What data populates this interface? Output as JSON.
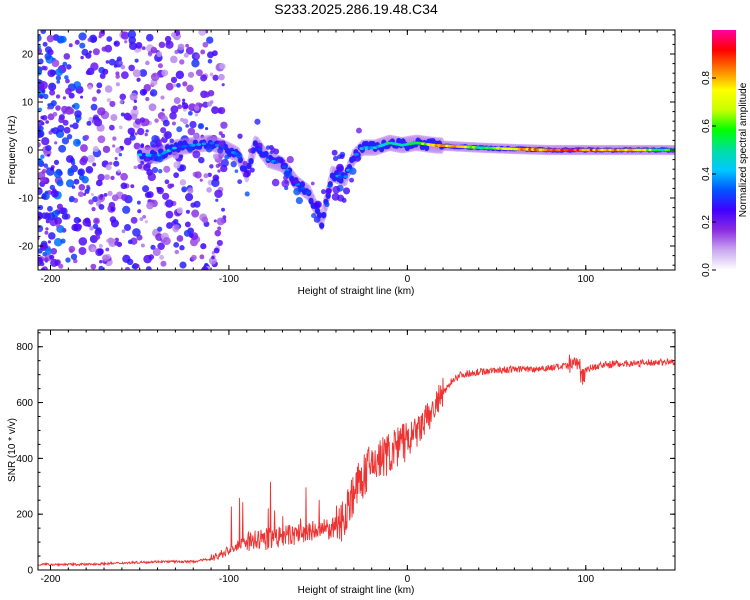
{
  "chart_data": [
    {
      "type": "heatmap",
      "title": "S233.2025.286.19.48.C34",
      "xlabel": "Height of straight line (km)",
      "ylabel": "Frequency (Hz)",
      "xlim": [
        -207,
        150
      ],
      "ylim": [
        -25,
        25
      ],
      "xticks": [
        -200,
        -100,
        0,
        100
      ],
      "yticks": [
        -20,
        -10,
        0,
        10,
        20
      ],
      "colorbar": {
        "label": "Normalized spectral amplitude",
        "range": [
          0,
          1
        ],
        "ticks": [
          "0.0",
          "0.2",
          "0.4",
          "0.6",
          "0.8"
        ],
        "colors": [
          "#ffffff",
          "#c9a8ef",
          "#8a2be2",
          "#4000ff",
          "#0055ff",
          "#00c8ff",
          "#00e0a0",
          "#00ff00",
          "#c8ff00",
          "#ffff00",
          "#ff8000",
          "#ff0000",
          "#ff00a0"
        ]
      },
      "ridge": [
        {
          "x": -150,
          "f": -1.0,
          "a": 0.35
        },
        {
          "x": -140,
          "f": -1.2,
          "a": 0.45
        },
        {
          "x": -130,
          "f": 0.5,
          "a": 0.4
        },
        {
          "x": -120,
          "f": 1.0,
          "a": 0.35
        },
        {
          "x": -110,
          "f": 1.5,
          "a": 0.3
        },
        {
          "x": -103,
          "f": 0.5,
          "a": 0.3
        },
        {
          "x": -95,
          "f": -1.0,
          "a": 0.3
        },
        {
          "x": -90,
          "f": -5.0,
          "a": 0.25
        },
        {
          "x": -85,
          "f": 1.5,
          "a": 0.25
        },
        {
          "x": -78,
          "f": -2.0,
          "a": 0.3
        },
        {
          "x": -70,
          "f": -3.0,
          "a": 0.3
        },
        {
          "x": -62,
          "f": -7.0,
          "a": 0.3
        },
        {
          "x": -55,
          "f": -9.0,
          "a": 0.25
        },
        {
          "x": -48,
          "f": -15.0,
          "a": 0.2
        },
        {
          "x": -42,
          "f": -5.0,
          "a": 0.3
        },
        {
          "x": -35,
          "f": -6.0,
          "a": 0.35
        },
        {
          "x": -30,
          "f": -1.5,
          "a": 0.3
        },
        {
          "x": -25,
          "f": 0.5,
          "a": 0.35
        },
        {
          "x": -18,
          "f": 0.5,
          "a": 0.45
        },
        {
          "x": -10,
          "f": 1.5,
          "a": 0.5
        },
        {
          "x": -3,
          "f": 1.0,
          "a": 0.5
        },
        {
          "x": 5,
          "f": 1.5,
          "a": 0.55
        },
        {
          "x": 15,
          "f": 1.0,
          "a": 0.75
        },
        {
          "x": 25,
          "f": 0.8,
          "a": 0.85
        },
        {
          "x": 40,
          "f": 0.5,
          "a": 0.55
        },
        {
          "x": 60,
          "f": 0.2,
          "a": 0.75
        },
        {
          "x": 80,
          "f": 0.0,
          "a": 0.85
        },
        {
          "x": 95,
          "f": 0.0,
          "a": 0.9
        },
        {
          "x": 110,
          "f": 0.0,
          "a": 0.8
        },
        {
          "x": 125,
          "f": 0.0,
          "a": 0.85
        },
        {
          "x": 140,
          "f": 0.0,
          "a": 0.6
        },
        {
          "x": 150,
          "f": 0.0,
          "a": 0.5
        }
      ]
    },
    {
      "type": "line",
      "title": "",
      "xlabel": "Height of straight line (km)",
      "ylabel": "SNR (10 * v/v)",
      "xlim": [
        -207,
        150
      ],
      "ylim": [
        0,
        860
      ],
      "xticks": [
        -200,
        -100,
        0,
        100
      ],
      "yticks": [
        0,
        200,
        400,
        600,
        800
      ],
      "color": "#ee3333",
      "x": [
        -207,
        -180,
        -160,
        -140,
        -120,
        -110,
        -100,
        -90,
        -80,
        -70,
        -60,
        -50,
        -40,
        -35,
        -30,
        -25,
        -20,
        -15,
        -10,
        -5,
        0,
        5,
        10,
        15,
        20,
        25,
        30,
        40,
        50,
        60,
        70,
        80,
        90,
        95,
        98,
        100,
        110,
        120,
        130,
        140,
        150
      ],
      "values": [
        20,
        20,
        25,
        30,
        30,
        40,
        70,
        100,
        110,
        120,
        130,
        140,
        150,
        200,
        280,
        330,
        380,
        400,
        420,
        440,
        460,
        490,
        530,
        580,
        630,
        680,
        700,
        710,
        715,
        720,
        720,
        725,
        730,
        745,
        700,
        720,
        735,
        740,
        740,
        745,
        745
      ]
    }
  ]
}
